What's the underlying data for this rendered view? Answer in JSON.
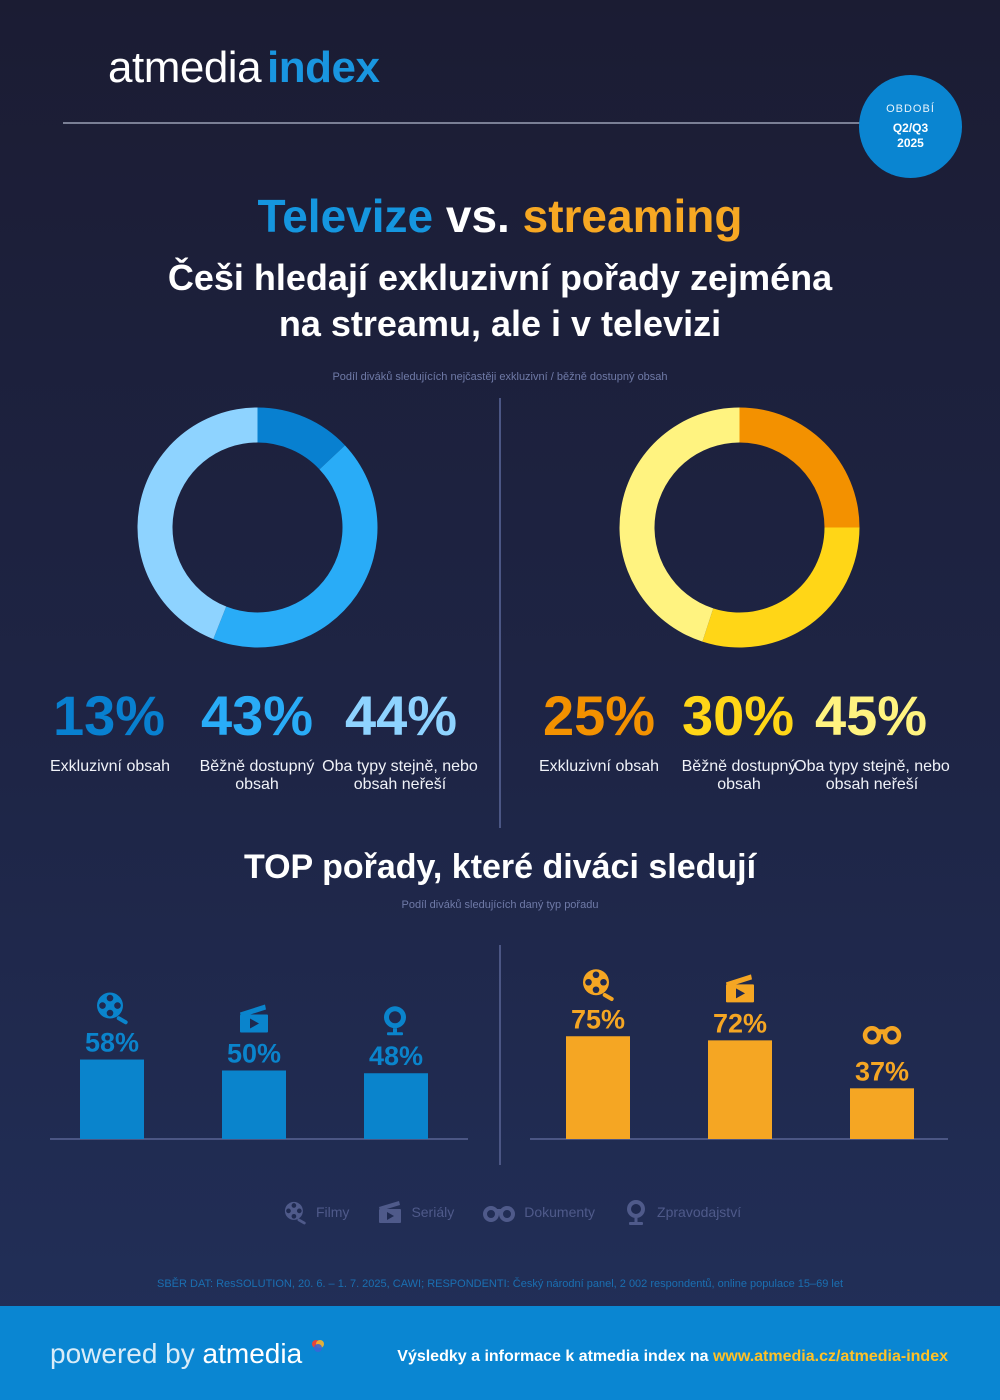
{
  "header": {
    "logo_main": "atmedia",
    "logo_accent": "index",
    "period_label": "OBDOBÍ",
    "period_value": "Q2/Q3",
    "period_year": "2025"
  },
  "title": {
    "part1": "Televize",
    "part2": "vs.",
    "part3": "streaming"
  },
  "subtitle_line1": "Češi hledají exkluzivní pořady zejména",
  "subtitle_line2": "na streamu, ale i v televizi",
  "donut_note": "Podíl diváků sledujících nejčastěji exkluzivní / běžně dostupný obsah",
  "section2_title": "TOP pořady, které diváci sledují",
  "section2_note": "Podíl diváků sledujících daný typ pořadu",
  "legend": {
    "films": "Filmy",
    "series": "Seriály",
    "docs": "Dokumenty",
    "news": "Zpravodajství"
  },
  "source": "SBĚR DAT: ResSOLUTION, 20. 6. – 1. 7. 2025, CAWI; RESPONDENTI: Český národní panel, 2 002 respondentů, online populace 15–69 let",
  "footer": {
    "powered_by": "powered by",
    "brand": "atmedia",
    "info_text": "Výsledky a informace k atmedia index na",
    "url": "www.atmedia.cz/atmedia-index"
  },
  "colors": {
    "tv": [
      "#0880d0",
      "#29acf7",
      "#8ed3ff"
    ],
    "stream": [
      "#f39100",
      "#ffd617",
      "#fff380"
    ],
    "tv_bar": "#0a84cc",
    "stream_bar": "#f5a623"
  },
  "chart_data": [
    {
      "type": "pie",
      "title": "Televize",
      "categories": [
        "Exkluzivní obsah",
        "Běžně dostupný obsah",
        "Oba typy stejně, nebo obsah neřeší"
      ],
      "values": [
        13,
        43,
        44
      ],
      "value_labels": [
        "13%",
        "43%",
        "44%"
      ]
    },
    {
      "type": "pie",
      "title": "Streaming",
      "categories": [
        "Exkluzivní obsah",
        "Běžně dostupný obsah",
        "Oba typy stejně, nebo obsah neřeší"
      ],
      "values": [
        25,
        30,
        45
      ],
      "value_labels": [
        "25%",
        "30%",
        "45%"
      ]
    },
    {
      "type": "bar",
      "title": "Televize",
      "categories": [
        "Filmy",
        "Seriály",
        "Zpravodajství"
      ],
      "icons": [
        "film-reel-icon",
        "clapperboard-icon",
        "globe-icon"
      ],
      "values": [
        58,
        50,
        48
      ],
      "value_labels": [
        "58%",
        "50%",
        "48%"
      ]
    },
    {
      "type": "bar",
      "title": "Streaming",
      "categories": [
        "Filmy",
        "Seriály",
        "Dokumenty"
      ],
      "icons": [
        "film-reel-icon",
        "clapperboard-icon",
        "binoculars-icon"
      ],
      "values": [
        75,
        72,
        37
      ],
      "value_labels": [
        "75%",
        "72%",
        "37%"
      ]
    }
  ]
}
